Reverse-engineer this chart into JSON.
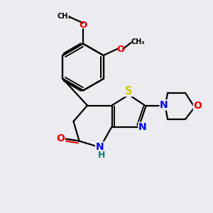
{
  "bg_color": "#ebebf0",
  "bond_color": "#000000",
  "atom_colors": {
    "N": "#0000ee",
    "O": "#ee0000",
    "S": "#cccc00",
    "C": "#000000",
    "H": "#008080"
  },
  "lw": 1.6,
  "fs": 8.5
}
